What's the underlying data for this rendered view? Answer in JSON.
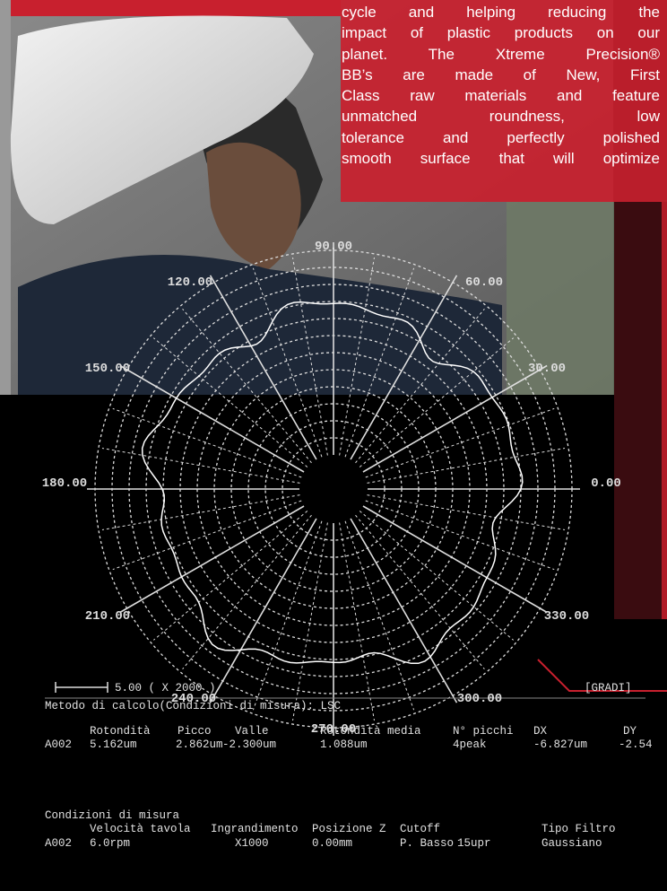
{
  "paragraph": [
    "cycle and helping reducing the",
    "impact of plastic products on our",
    "planet. The Xtreme Precision®",
    "BB’s are made of New, First",
    "Class raw materials and feature",
    "unmatched roundness, low",
    "tolerance and perfectly polished",
    "smooth surface that will optimize"
  ],
  "polar_labels": [
    "90.00",
    "120.00",
    "60.00",
    "150.00",
    "30.00",
    "180.00",
    "0.00",
    "210.00",
    "330.00",
    "240.00",
    "300.00",
    "270.00"
  ],
  "scale": "5.00 ( X 2000 )",
  "units": "[GRADI]",
  "method": "Metodo di calcolo(Condizioni di misura): LSC",
  "table1": {
    "headers": [
      "Rotondità",
      "Picco",
      "Valle",
      "Rotondità media",
      "N° picchi",
      "DX",
      "DY"
    ],
    "row": [
      "A002",
      "5.162um",
      "2.862um",
      "-2.300um",
      "1.088um",
      "4peak",
      "-6.827um",
      "-2.54"
    ]
  },
  "conditions_title": "Condizioni di misura",
  "table2": {
    "headers": [
      "Velocità tavola",
      "Ingrandimento",
      "Posizione Z",
      "Cutoff",
      "Tipo Filtro"
    ],
    "row": [
      "A002",
      "6.0rpm",
      "X1000",
      "0.00mm",
      "P. Basso",
      "15upr",
      "Gaussiano"
    ]
  }
}
